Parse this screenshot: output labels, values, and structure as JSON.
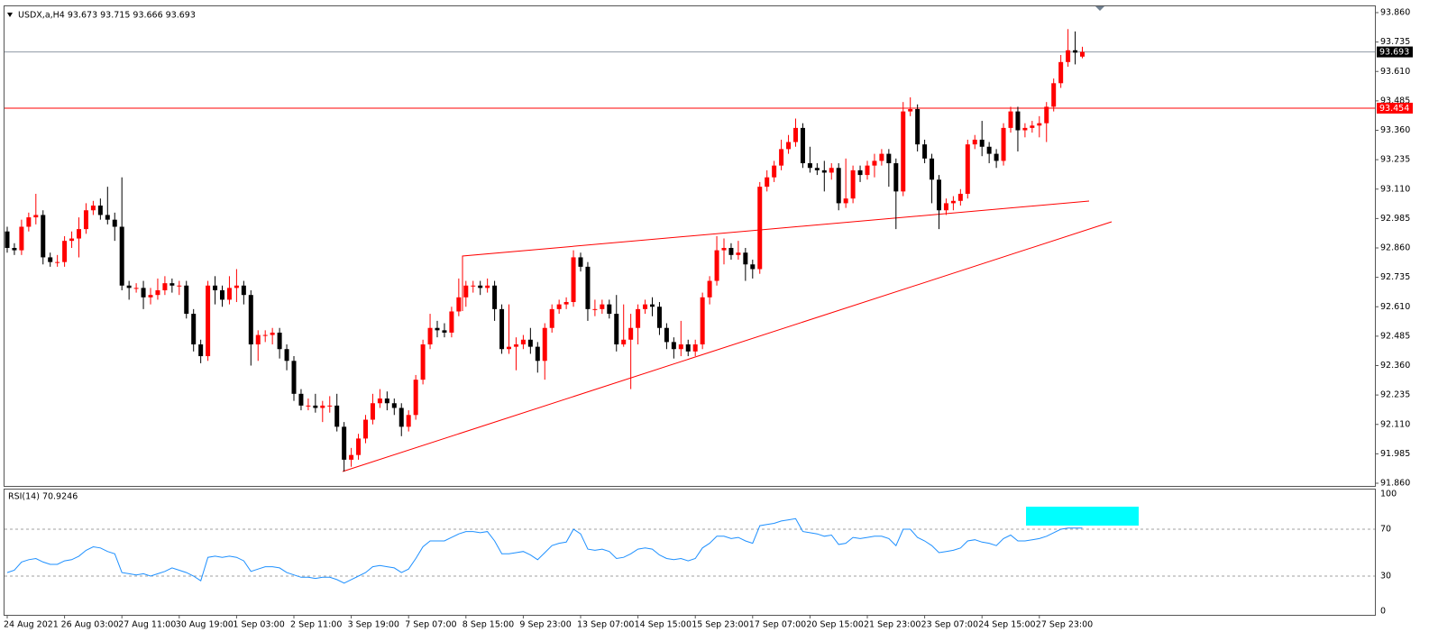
{
  "chart_data": [
    {
      "type": "candlestick",
      "title": "USDX,a,H4  93.673 93.715 93.666 93.693",
      "up_color": "#ff0000",
      "down_color": "#000000",
      "categories": [
        "24 Aug 2021",
        null,
        null,
        null,
        null,
        null,
        null,
        null,
        "26 Aug 03:00",
        null,
        null,
        null,
        null,
        null,
        null,
        null,
        "27 Aug 11:00",
        null,
        null,
        null,
        null,
        null,
        null,
        null,
        "30 Aug 19:00",
        null,
        null,
        null,
        null,
        null,
        null,
        null,
        "1 Sep 03:00",
        null,
        null,
        null,
        null,
        null,
        null,
        null,
        "2 Sep 11:00",
        null,
        null,
        null,
        null,
        null,
        null,
        null,
        "3 Sep 19:00",
        null,
        null,
        null,
        null,
        null,
        null,
        null,
        "7 Sep 07:00",
        null,
        null,
        null,
        null,
        null,
        null,
        null,
        "8 Sep 15:00",
        null,
        null,
        null,
        null,
        null,
        null,
        null,
        "9 Sep 23:00",
        null,
        null,
        null,
        null,
        null,
        null,
        null,
        "13 Sep 07:00",
        null,
        null,
        null,
        null,
        null,
        null,
        null,
        "14 Sep 15:00",
        null,
        null,
        null,
        null,
        null,
        null,
        null,
        "15 Sep 23:00",
        null,
        null,
        null,
        null,
        null,
        null,
        null,
        "17 Sep 07:00",
        null,
        null,
        null,
        null,
        null,
        null,
        null,
        "20 Sep 15:00",
        null,
        null,
        null,
        null,
        null,
        null,
        null,
        "21 Sep 23:00",
        null,
        null,
        null,
        null,
        null,
        null,
        null,
        "23 Sep 07:00",
        null,
        null,
        null,
        null,
        null,
        null,
        null,
        "24 Sep 15:00",
        null,
        null,
        null,
        null,
        null,
        null,
        null,
        "27 Sep 23:00",
        null,
        null,
        null,
        null,
        null,
        null
      ],
      "open": [
        92.93,
        92.86,
        92.85,
        92.95,
        92.99,
        93.0,
        92.82,
        92.8,
        92.8,
        92.89,
        92.9,
        92.94,
        93.02,
        93.04,
        93.0,
        92.98,
        92.95,
        92.7,
        92.69,
        92.69,
        92.65,
        92.66,
        92.68,
        92.71,
        92.7,
        92.7,
        92.58,
        92.45,
        92.4,
        92.7,
        92.68,
        92.64,
        92.69,
        92.7,
        92.66,
        92.45,
        92.49,
        92.49,
        92.5,
        92.43,
        92.38,
        92.24,
        92.19,
        92.19,
        92.18,
        92.19,
        92.19,
        92.1,
        91.96,
        91.98,
        92.05,
        92.13,
        92.2,
        92.22,
        92.2,
        92.18,
        92.1,
        92.15,
        92.3,
        92.45,
        92.52,
        92.51,
        92.5,
        92.59,
        92.65,
        92.7,
        92.7,
        92.69,
        92.7,
        92.6,
        92.43,
        92.44,
        92.45,
        92.47,
        92.44,
        92.38,
        92.52,
        92.6,
        92.62,
        92.63,
        92.82,
        92.78,
        92.6,
        92.6,
        92.62,
        92.58,
        92.45,
        92.47,
        92.52,
        92.6,
        92.62,
        92.61,
        92.52,
        92.46,
        92.43,
        92.45,
        92.42,
        92.45,
        92.65,
        92.72,
        92.85,
        92.86,
        92.83,
        92.84,
        92.79,
        92.77,
        93.12,
        93.16,
        93.21,
        93.28,
        93.31,
        93.37,
        93.22,
        93.2,
        93.19,
        93.18,
        93.2,
        93.05,
        93.07,
        93.19,
        93.17,
        93.21,
        93.23,
        93.26,
        93.22,
        93.1,
        93.44,
        93.45,
        93.3,
        93.24,
        93.15,
        93.02,
        93.05,
        93.06,
        93.09,
        93.3,
        93.32,
        93.29,
        93.26,
        93.23,
        93.37,
        93.44,
        93.36,
        93.37,
        93.38,
        93.39,
        93.46,
        93.56,
        93.65,
        93.7,
        93.673
      ],
      "high": [
        92.95,
        92.88,
        92.98,
        93.01,
        93.09,
        93.02,
        92.84,
        92.83,
        92.91,
        92.93,
        92.99,
        93.05,
        93.06,
        93.07,
        93.12,
        93.01,
        93.16,
        92.72,
        92.71,
        92.72,
        92.69,
        92.73,
        92.74,
        92.73,
        92.72,
        92.72,
        92.6,
        92.47,
        92.72,
        92.74,
        92.7,
        92.74,
        92.77,
        92.72,
        92.68,
        92.51,
        92.51,
        92.52,
        92.52,
        92.45,
        92.4,
        92.26,
        92.22,
        92.24,
        92.21,
        92.23,
        92.24,
        92.12,
        92.01,
        92.07,
        92.15,
        92.24,
        92.26,
        92.25,
        92.22,
        92.2,
        92.17,
        92.32,
        92.47,
        92.58,
        92.55,
        92.54,
        92.61,
        92.73,
        92.72,
        92.72,
        92.72,
        92.73,
        92.72,
        92.62,
        92.62,
        92.48,
        92.49,
        92.52,
        92.46,
        92.54,
        92.62,
        92.64,
        92.65,
        92.85,
        92.84,
        92.8,
        92.64,
        92.64,
        92.64,
        92.66,
        92.62,
        92.58,
        92.62,
        92.64,
        92.65,
        92.63,
        92.54,
        92.48,
        92.55,
        92.47,
        92.47,
        92.67,
        92.74,
        92.91,
        92.9,
        92.88,
        92.89,
        92.86,
        92.81,
        93.14,
        93.19,
        93.23,
        93.32,
        93.34,
        93.41,
        93.39,
        93.29,
        93.22,
        93.23,
        93.22,
        93.22,
        93.24,
        93.21,
        93.21,
        93.23,
        93.26,
        93.28,
        93.28,
        93.24,
        93.48,
        93.5,
        93.47,
        93.32,
        93.26,
        93.17,
        93.07,
        93.08,
        93.11,
        93.32,
        93.34,
        93.4,
        93.31,
        93.28,
        93.39,
        93.46,
        93.46,
        93.39,
        93.4,
        93.42,
        93.48,
        93.58,
        93.68,
        93.79,
        93.78,
        93.715
      ],
      "low": [
        92.84,
        92.83,
        92.83,
        92.93,
        92.96,
        92.79,
        92.78,
        92.78,
        92.78,
        92.86,
        92.82,
        92.92,
        93.0,
        92.98,
        92.96,
        92.89,
        92.68,
        92.64,
        92.67,
        92.6,
        92.62,
        92.64,
        92.66,
        92.67,
        92.66,
        92.56,
        92.42,
        92.37,
        92.38,
        92.62,
        92.61,
        92.62,
        92.63,
        92.62,
        92.36,
        92.38,
        92.46,
        92.45,
        92.39,
        92.34,
        92.21,
        92.17,
        92.17,
        92.16,
        92.12,
        92.16,
        92.08,
        91.91,
        91.93,
        91.96,
        92.03,
        92.11,
        92.18,
        92.17,
        92.15,
        92.06,
        92.08,
        92.13,
        92.28,
        92.43,
        92.48,
        92.48,
        92.48,
        92.57,
        92.61,
        92.67,
        92.66,
        92.67,
        92.55,
        92.41,
        92.41,
        92.34,
        92.43,
        92.41,
        92.33,
        92.3,
        92.5,
        92.58,
        92.6,
        92.61,
        92.76,
        92.55,
        92.57,
        92.58,
        92.56,
        92.42,
        92.44,
        92.26,
        92.45,
        92.58,
        92.57,
        92.49,
        92.43,
        92.39,
        92.4,
        92.4,
        92.4,
        92.43,
        92.62,
        92.7,
        92.79,
        92.81,
        92.81,
        92.72,
        92.73,
        92.75,
        93.1,
        93.14,
        93.19,
        93.26,
        93.29,
        93.2,
        93.18,
        93.17,
        93.1,
        93.15,
        93.02,
        93.03,
        93.05,
        93.14,
        93.15,
        93.16,
        93.21,
        93.12,
        92.94,
        93.08,
        93.42,
        93.27,
        93.22,
        93.05,
        92.94,
        93.0,
        93.02,
        93.04,
        93.07,
        93.28,
        93.25,
        93.22,
        93.2,
        93.21,
        93.35,
        93.27,
        93.33,
        93.35,
        93.33,
        93.31,
        93.44,
        93.54,
        93.63,
        93.64,
        93.666
      ],
      "close": [
        92.86,
        92.85,
        92.95,
        92.99,
        93.0,
        92.82,
        92.8,
        92.8,
        92.89,
        92.9,
        92.94,
        93.02,
        93.04,
        93.0,
        92.98,
        92.95,
        92.7,
        92.69,
        92.69,
        92.65,
        92.66,
        92.68,
        92.71,
        92.7,
        92.7,
        92.58,
        92.45,
        92.4,
        92.7,
        92.68,
        92.64,
        92.69,
        92.7,
        92.66,
        92.45,
        92.49,
        92.49,
        92.5,
        92.43,
        92.38,
        92.24,
        92.19,
        92.19,
        92.18,
        92.19,
        92.19,
        92.1,
        91.96,
        91.98,
        92.05,
        92.13,
        92.2,
        92.22,
        92.2,
        92.18,
        92.1,
        92.15,
        92.3,
        92.45,
        92.52,
        92.51,
        92.5,
        92.59,
        92.65,
        92.7,
        92.7,
        92.69,
        92.7,
        92.6,
        92.43,
        92.44,
        92.45,
        92.47,
        92.44,
        92.38,
        92.52,
        92.6,
        92.62,
        92.63,
        92.82,
        92.78,
        92.6,
        92.6,
        92.62,
        92.58,
        92.45,
        92.47,
        92.52,
        92.6,
        92.62,
        92.61,
        92.52,
        92.46,
        92.43,
        92.45,
        92.42,
        92.45,
        92.65,
        92.72,
        92.85,
        92.86,
        92.83,
        92.84,
        92.79,
        92.77,
        93.12,
        93.16,
        93.21,
        93.28,
        93.31,
        93.37,
        93.22,
        93.2,
        93.19,
        93.18,
        93.2,
        93.05,
        93.07,
        93.19,
        93.17,
        93.21,
        93.23,
        93.26,
        93.22,
        93.1,
        93.44,
        93.45,
        93.3,
        93.24,
        93.15,
        93.02,
        93.05,
        93.06,
        93.09,
        93.3,
        93.32,
        93.29,
        93.26,
        93.23,
        93.37,
        93.44,
        93.36,
        93.37,
        93.38,
        93.39,
        93.46,
        93.56,
        93.65,
        93.7,
        93.69,
        93.693
      ],
      "ylim": [
        91.86,
        93.86
      ],
      "yticks": [
        {
          "value": 93.86,
          "label": "93.860"
        },
        93.735,
        {
          "value": 93.61,
          "label": "93.610"
        },
        93.485,
        {
          "value": 93.36,
          "label": "93.360"
        },
        93.235,
        {
          "value": 93.11,
          "label": "93.110"
        },
        92.985,
        {
          "value": 92.86,
          "label": "92.860"
        },
        92.735,
        {
          "value": 92.61,
          "label": "92.610"
        },
        92.485,
        {
          "value": 92.36,
          "label": "92.360"
        },
        92.235,
        {
          "value": 92.11,
          "label": "92.110"
        },
        91.985,
        {
          "value": 91.86,
          "label": "91.860"
        }
      ],
      "price_lines": [
        {
          "value": 93.693,
          "color": "#8f9aa5",
          "label_color": "#000000"
        },
        {
          "value": 93.454,
          "color": "#ff0000",
          "label_color": "#ff0000"
        }
      ]
    },
    {
      "type": "line",
      "title": "RSI(14) 70.9246",
      "color": "#1e90ff",
      "values": [
        33,
        35,
        42,
        44,
        45,
        42,
        40,
        40,
        43,
        44,
        47,
        52,
        55,
        54,
        51,
        49,
        33,
        32,
        31,
        32,
        30,
        32,
        34,
        37,
        35,
        33,
        30,
        26,
        46,
        47,
        46,
        47,
        46,
        43,
        34,
        36,
        38,
        38,
        37,
        33,
        31,
        29,
        29,
        28,
        29,
        29,
        27,
        24,
        27,
        30,
        33,
        38,
        39,
        38,
        37,
        33,
        36,
        45,
        55,
        60,
        60,
        60,
        63,
        66,
        68,
        68,
        67,
        68,
        60,
        49,
        49,
        50,
        51,
        48,
        44,
        50,
        56,
        58,
        59,
        70,
        66,
        53,
        52,
        53,
        51,
        45,
        46,
        49,
        53,
        54,
        53,
        48,
        45,
        44,
        45,
        43,
        45,
        54,
        58,
        64,
        64,
        62,
        63,
        60,
        58,
        73,
        74,
        75,
        77,
        78,
        79,
        68,
        67,
        66,
        64,
        65,
        57,
        58,
        63,
        62,
        63,
        64,
        64,
        62,
        56,
        70,
        70,
        63,
        60,
        56,
        50,
        51,
        52,
        54,
        60,
        61,
        59,
        58,
        56,
        62,
        65,
        60,
        60,
        61,
        62,
        64,
        67,
        70,
        71,
        71,
        70.9246
      ],
      "ylim": [
        0,
        100
      ],
      "yticks": [
        0,
        30,
        70,
        100
      ]
    }
  ]
}
